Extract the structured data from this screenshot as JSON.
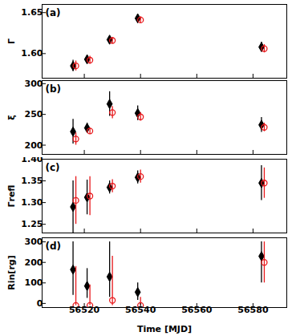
{
  "chart_data": [
    {
      "type": "scatter",
      "title": "(a)",
      "y_label": "Γ",
      "xlim": [
        56505,
        56592
      ],
      "xticks": [
        56520,
        56540,
        56560,
        56580
      ],
      "ylim": [
        1.57,
        1.66
      ],
      "yticks": [
        1.6,
        1.65
      ],
      "tick_labels": "y",
      "series": [
        {
          "color": "#000000",
          "marker": "diamond",
          "x": [
            56516,
            56521,
            56529,
            56539,
            56583
          ],
          "values": [
            1.585,
            1.593,
            1.617,
            1.643,
            1.608
          ],
          "err_minus": [
            0.007,
            0.005,
            0.004,
            0.004,
            0.006
          ],
          "err_plus": [
            0.007,
            0.005,
            0.004,
            0.004,
            0.006
          ]
        },
        {
          "color": "#e8191c",
          "marker": "circle_open",
          "x": [
            56517,
            56522,
            56530,
            56540,
            56584
          ],
          "values": [
            1.585,
            1.592,
            1.616,
            1.641,
            1.606
          ],
          "err_minus": [
            0.006,
            0.005,
            0.004,
            0.004,
            0.005
          ],
          "err_plus": [
            0.006,
            0.005,
            0.004,
            0.004,
            0.005
          ]
        }
      ]
    },
    {
      "type": "scatter",
      "title": "(b)",
      "y_label": "ξ",
      "xlim": [
        56505,
        56592
      ],
      "xticks": [
        56520,
        56540,
        56560,
        56580
      ],
      "ylim": [
        185,
        305
      ],
      "yticks": [
        200,
        250,
        300
      ],
      "tick_labels": "y",
      "series": [
        {
          "color": "#000000",
          "marker": "diamond",
          "x": [
            56516,
            56521,
            56529,
            56539,
            56583
          ],
          "values": [
            222,
            228,
            267,
            252,
            233
          ],
          "err_minus": [
            20,
            8,
            20,
            12,
            12
          ],
          "err_plus": [
            20,
            8,
            20,
            12,
            12
          ]
        },
        {
          "color": "#e8191c",
          "marker": "circle_open",
          "x": [
            56517,
            56522,
            56530,
            56540,
            56584
          ],
          "values": [
            210,
            223,
            253,
            246,
            229
          ],
          "err_minus": [
            10,
            5,
            10,
            7,
            7
          ],
          "err_plus": [
            10,
            5,
            10,
            7,
            7
          ]
        }
      ]
    },
    {
      "type": "scatter",
      "title": "(c)",
      "y_label": "Γrefl",
      "xlim": [
        56505,
        56592
      ],
      "xticks": [
        56520,
        56540,
        56560,
        56580
      ],
      "ylim": [
        1.23,
        1.4
      ],
      "yticks": [
        1.25,
        1.3,
        1.35,
        1.4
      ],
      "tick_labels": "y",
      "series": [
        {
          "color": "#000000",
          "marker": "diamond",
          "x": [
            56516,
            56521,
            56529,
            56539,
            56583
          ],
          "values": [
            1.29,
            1.312,
            1.335,
            1.358,
            1.345
          ],
          "err_minus": [
            0.06,
            0.04,
            0.015,
            0.015,
            0.04
          ],
          "err_plus": [
            0.06,
            0.04,
            0.015,
            0.015,
            0.04
          ]
        },
        {
          "color": "#e8191c",
          "marker": "circle_open",
          "x": [
            56517,
            56522,
            56530,
            56540,
            56584
          ],
          "values": [
            1.305,
            1.315,
            1.338,
            1.36,
            1.345
          ],
          "err_minus": [
            0.055,
            0.045,
            0.015,
            0.015,
            0.035
          ],
          "err_plus": [
            0.055,
            0.045,
            0.015,
            0.015,
            0.035
          ]
        }
      ]
    },
    {
      "type": "scatter",
      "title": "(d)",
      "y_label": "Rin[rg]",
      "x_label": "Time [MJD]",
      "xlim": [
        56505,
        56592
      ],
      "xticks": [
        56520,
        56540,
        56560,
        56580
      ],
      "ylim": [
        -20,
        320
      ],
      "yticks": [
        0,
        100,
        200,
        300
      ],
      "series": [
        {
          "color": "#000000",
          "marker": "diamond",
          "x": [
            56516,
            56521,
            56529,
            56539,
            56583
          ],
          "values": [
            165,
            85,
            130,
            55,
            230
          ],
          "err_minus": [
            125,
            60,
            100,
            40,
            130
          ],
          "err_plus": [
            135,
            85,
            170,
            45,
            70
          ]
        },
        {
          "color": "#e8191c",
          "marker": "circle_open",
          "x": [
            56517,
            56522,
            56530,
            56540,
            56584
          ],
          "values": [
            -10,
            -10,
            15,
            -10,
            200
          ],
          "err_minus": [
            0,
            0,
            25,
            0,
            100
          ],
          "err_plus": [
            190,
            100,
            215,
            40,
            100
          ]
        }
      ]
    }
  ]
}
